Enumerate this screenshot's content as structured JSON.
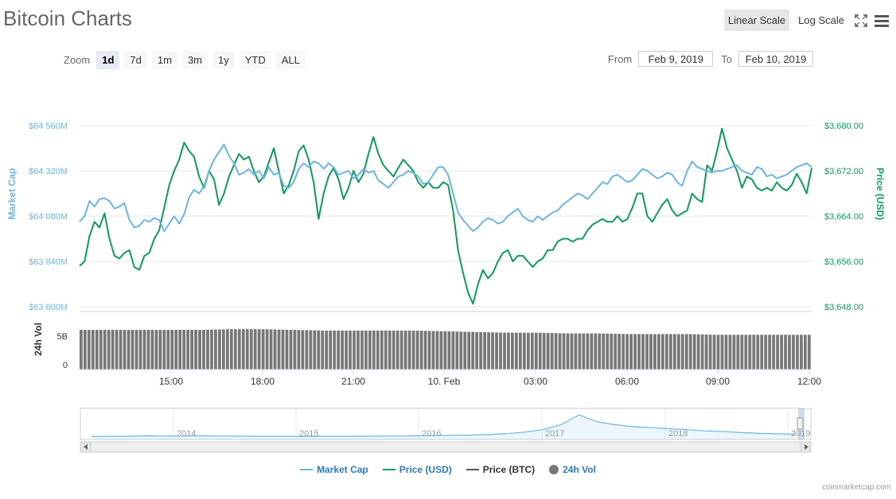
{
  "page": {
    "title": "Bitcoin Charts",
    "scale_buttons": [
      "Linear Scale",
      "Log Scale"
    ],
    "active_scale": "Linear Scale",
    "zoom_label": "Zoom",
    "zoom_options": [
      "1d",
      "7d",
      "1m",
      "3m",
      "1y",
      "YTD",
      "ALL"
    ],
    "active_zoom": "1d",
    "from_label": "From",
    "from_value": "Feb 9, 2019",
    "to_label": "To",
    "to_value": "Feb 10, 2019",
    "credit": "coinmarketcap.com",
    "icons": [
      "fullscreen-icon",
      "menu-icon"
    ]
  },
  "colors": {
    "market_cap": "#6cb4e4",
    "price_usd": "#0d9c5c",
    "price_btc": "#555555",
    "volume": "#777777",
    "grid": "#e6e6e6"
  },
  "chart_data": [
    {
      "type": "line",
      "title": "",
      "x_ticks": [
        "15:00",
        "18:00",
        "21:00",
        "10. Feb",
        "03:00",
        "06:00",
        "09:00",
        "12:00"
      ],
      "y_left": {
        "label": "Market Cap",
        "ticks": [
          "$64 560M",
          "$64 320M",
          "$64 080M",
          "$63 840M",
          "$63 600M"
        ],
        "range": [
          63600,
          64560
        ]
      },
      "y_right": {
        "label": "Price (USD)",
        "ticks": [
          "$3,680.00",
          "$3,672.00",
          "$3,664.00",
          "$3,656.00",
          "$3,648.00"
        ],
        "range": [
          3648,
          3680
        ]
      },
      "series": [
        {
          "name": "Market Cap",
          "values": [
            64050,
            64080,
            64160,
            64130,
            64170,
            64175,
            64160,
            64120,
            64130,
            64150,
            64060,
            64020,
            64030,
            64060,
            64050,
            64070,
            64060,
            64000,
            64040,
            64080,
            64040,
            64090,
            64180,
            64220,
            64200,
            64240,
            64320,
            64380,
            64420,
            64460,
            64400,
            64360,
            64300,
            64310,
            64330,
            64300,
            64320,
            64280,
            64340,
            64300,
            64310,
            64240,
            64230,
            64260,
            64330,
            64360,
            64340,
            64370,
            64360,
            64330,
            64360,
            64340,
            64300,
            64310,
            64320,
            64280,
            64300,
            64330,
            64310,
            64320,
            64270,
            64250,
            64230,
            64260,
            64290,
            64300,
            64320,
            64310,
            64290,
            64250,
            64260,
            64300,
            64340,
            64340,
            64300,
            64200,
            64100,
            64060,
            64030,
            64000,
            64020,
            64050,
            64070,
            64060,
            64040,
            64050,
            64080,
            64100,
            64120,
            64080,
            64060,
            64050,
            64080,
            64060,
            64080,
            64100,
            64110,
            64140,
            64160,
            64180,
            64200,
            64190,
            64170,
            64200,
            64230,
            64260,
            64250,
            64290,
            64300,
            64280,
            64260,
            64270,
            64300,
            64330,
            64320,
            64300,
            64280,
            64290,
            64310,
            64300,
            64260,
            64240,
            64320,
            64370,
            64340,
            64330,
            64320,
            64310,
            64320,
            64320,
            64330,
            64340,
            64350,
            64320,
            64310,
            64300,
            64340,
            64330,
            64290,
            64300,
            64280,
            64290,
            64300,
            64320,
            64340,
            64350,
            64360,
            64340
          ]
        },
        {
          "name": "Price (USD)",
          "values": [
            3655.2,
            3656.0,
            3660.5,
            3663.0,
            3662.0,
            3664.5,
            3660.0,
            3657.0,
            3656.5,
            3657.5,
            3658.0,
            3655.0,
            3654.5,
            3657.0,
            3657.5,
            3660.0,
            3661.5,
            3665.5,
            3669.5,
            3672.0,
            3674.0,
            3677.0,
            3675.5,
            3674.5,
            3671.0,
            3669.0,
            3672.0,
            3670.5,
            3666.0,
            3668.0,
            3671.0,
            3673.0,
            3675.0,
            3674.0,
            3674.5,
            3672.0,
            3670.0,
            3671.0,
            3673.5,
            3676.0,
            3672.0,
            3668.0,
            3669.5,
            3672.0,
            3675.5,
            3676.5,
            3674.0,
            3670.0,
            3663.5,
            3668.0,
            3671.0,
            3672.5,
            3670.5,
            3667.0,
            3669.0,
            3672.0,
            3670.0,
            3671.5,
            3675.0,
            3678.0,
            3675.0,
            3673.0,
            3672.0,
            3671.0,
            3672.5,
            3674.0,
            3673.0,
            3672.0,
            3670.0,
            3669.0,
            3670.0,
            3669.0,
            3669.0,
            3670.0,
            3669.5,
            3665.0,
            3658.0,
            3654.0,
            3650.5,
            3648.5,
            3652.0,
            3654.5,
            3653.0,
            3654.0,
            3656.0,
            3657.5,
            3658.0,
            3656.0,
            3657.0,
            3657.0,
            3656.0,
            3655.0,
            3656.0,
            3656.5,
            3658.0,
            3658.0,
            3659.5,
            3660.0,
            3660.0,
            3659.5,
            3660.0,
            3660.0,
            3661.5,
            3662.5,
            3663.0,
            3663.5,
            3663.0,
            3663.0,
            3664.0,
            3663.0,
            3663.5,
            3665.5,
            3668.0,
            3668.0,
            3664.0,
            3663.0,
            3664.5,
            3666.0,
            3667.0,
            3665.0,
            3664.0,
            3664.5,
            3665.0,
            3668.0,
            3667.0,
            3666.5,
            3673.0,
            3672.0,
            3675.5,
            3679.5,
            3676.0,
            3674.0,
            3672.0,
            3669.0,
            3671.0,
            3670.5,
            3669.0,
            3668.5,
            3669.0,
            3668.5,
            3670.0,
            3669.0,
            3668.5,
            3669.5,
            3671.5,
            3670.0,
            3668.0,
            3672.5
          ]
        }
      ]
    },
    {
      "type": "bar",
      "title": "",
      "y_label": "24h Vol",
      "y_ticks": [
        "5B",
        "0"
      ],
      "range": [
        0,
        8
      ],
      "series": [
        {
          "name": "24h Vol",
          "values": [
            5.6,
            5.6,
            5.6,
            5.6,
            5.6,
            5.7,
            5.7,
            5.6,
            5.5,
            5.5,
            5.5,
            5.5,
            5.4,
            5.3,
            5.2,
            5.2,
            5.1,
            5.1,
            5.0,
            5.0,
            5.0,
            4.9,
            4.9,
            4.9,
            4.9
          ]
        }
      ]
    },
    {
      "type": "area",
      "title": "",
      "x_ticks": [
        "2014",
        "2015",
        "2016",
        "2017",
        "2018",
        "2019"
      ],
      "series": [
        {
          "name": "Market Cap",
          "values": [
            0.02,
            0.03,
            0.03,
            0.05,
            0.04,
            0.04,
            0.05,
            0.04,
            0.04,
            0.03,
            0.03,
            0.03,
            0.03,
            0.03,
            0.03,
            0.03,
            0.04,
            0.04,
            0.05,
            0.06,
            0.07,
            0.08,
            0.1,
            0.14,
            0.2,
            0.3,
            0.5,
            0.9,
            0.62,
            0.5,
            0.42,
            0.38,
            0.34,
            0.3,
            0.25,
            0.22,
            0.18,
            0.15,
            0.13,
            0.12
          ]
        }
      ]
    }
  ],
  "legend": [
    {
      "label": "Market Cap",
      "key": "market_cap",
      "shape": "line"
    },
    {
      "label": "Price (USD)",
      "key": "price_usd",
      "shape": "line"
    },
    {
      "label": "Price (BTC)",
      "key": "price_btc",
      "shape": "line"
    },
    {
      "label": "24h Vol",
      "key": "volume",
      "shape": "dot"
    }
  ]
}
